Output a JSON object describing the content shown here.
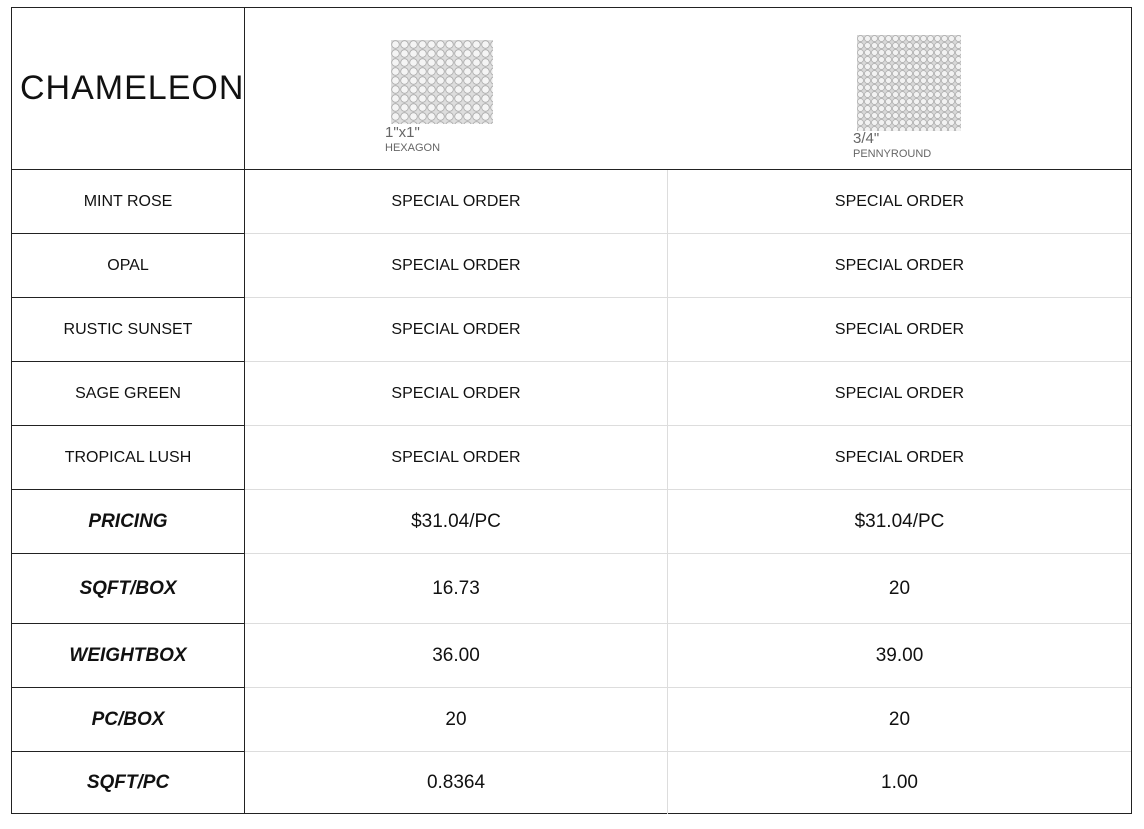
{
  "title": "CHAMELEON",
  "products": [
    {
      "size": "1\"x1\"",
      "shape": "HEXAGON"
    },
    {
      "size": "3/4\"",
      "shape": "PENNYROUND"
    }
  ],
  "colors": [
    {
      "name": "MINT ROSE",
      "values": [
        "SPECIAL ORDER",
        "SPECIAL ORDER"
      ]
    },
    {
      "name": "OPAL",
      "values": [
        "SPECIAL ORDER",
        "SPECIAL ORDER"
      ]
    },
    {
      "name": "RUSTIC SUNSET",
      "values": [
        "SPECIAL ORDER",
        "SPECIAL ORDER"
      ]
    },
    {
      "name": "SAGE GREEN",
      "values": [
        "SPECIAL ORDER",
        "SPECIAL ORDER"
      ]
    },
    {
      "name": "TROPICAL LUSH",
      "values": [
        "SPECIAL ORDER",
        "SPECIAL ORDER"
      ]
    }
  ],
  "specs": [
    {
      "name": "PRICING",
      "values": [
        "$31.04/PC",
        "$31.04/PC"
      ]
    },
    {
      "name": "SQFT/BOX",
      "values": [
        "16.73",
        "20"
      ]
    },
    {
      "name": "WEIGHTBOX",
      "values": [
        "36.00",
        "39.00"
      ]
    },
    {
      "name": "PC/BOX",
      "values": [
        "20",
        "20"
      ]
    },
    {
      "name": "SQFT/PC",
      "values": [
        "0.8364",
        "1.00"
      ]
    }
  ]
}
